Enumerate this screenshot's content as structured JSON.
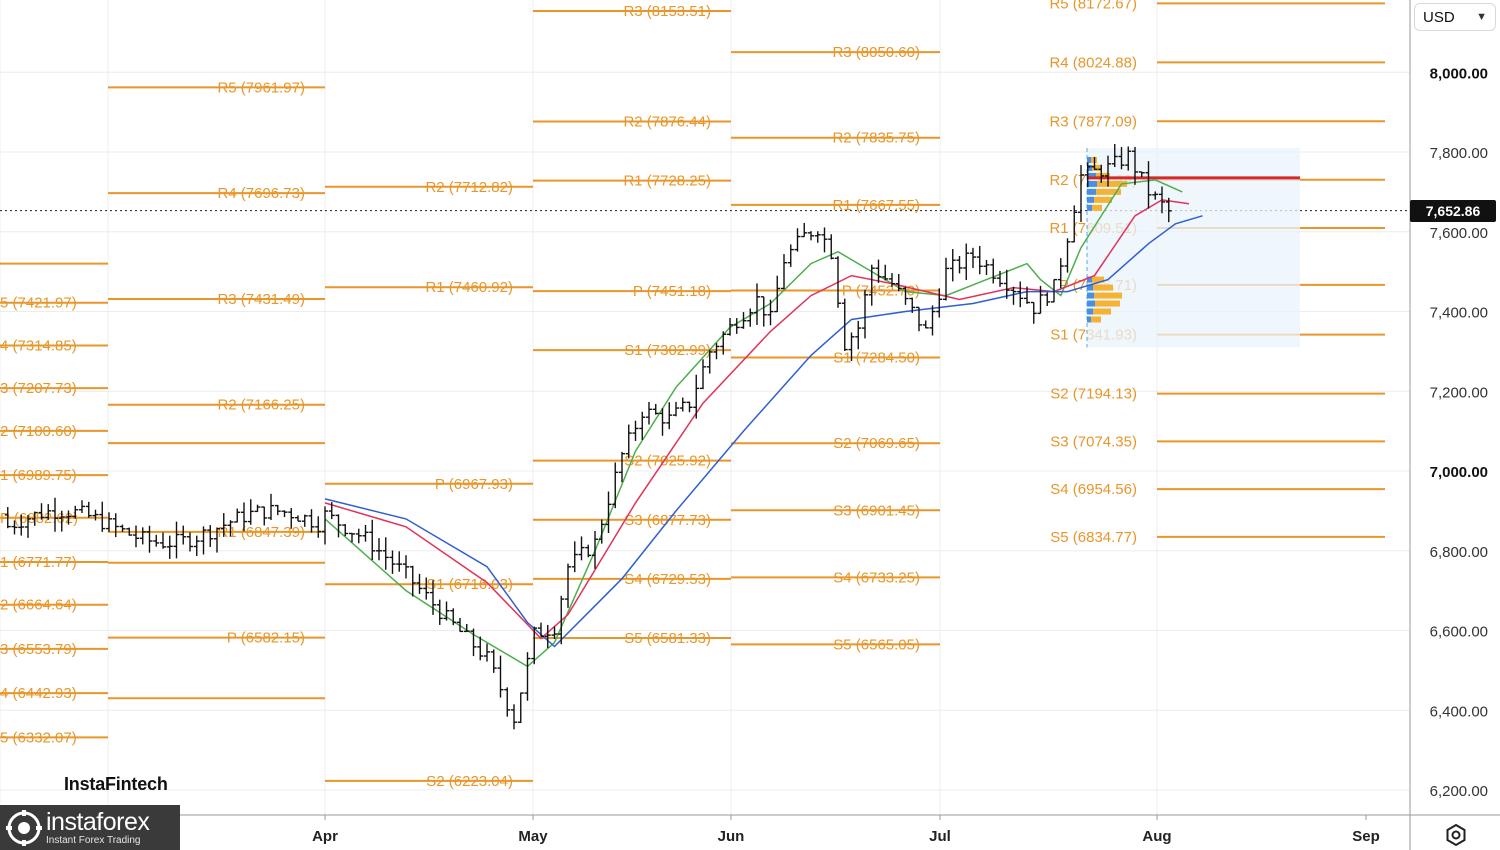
{
  "toolbar": {
    "currency": "USD"
  },
  "last_price_label": "7,652.86",
  "watermark": {
    "brand": "InstaFintech",
    "logo_name": "instaforex",
    "logo_tag": "Instant Forex Trading"
  },
  "colors": {
    "level": "#e8962a",
    "ma_fast": "#4fae4c",
    "ma_mid": "#e0335a",
    "ma_slow": "#2f5fd0",
    "profile_blue": "#4a90e2",
    "profile_orange": "#f5b335",
    "poc": "#d62828",
    "box": "#eaf3fb"
  },
  "chart_data": {
    "type": "ohlc",
    "y_axis": {
      "min": 6100,
      "max": 8250,
      "ticks": [
        "6,200.00",
        "6,400.00",
        "6,600.00",
        "6,800.00",
        "7,000.00",
        "7,200.00",
        "7,400.00",
        "7,600.00",
        "7,800.00",
        "8,000.00"
      ],
      "tick_values": [
        6200,
        6400,
        6600,
        6800,
        7000,
        7200,
        7400,
        7600,
        7800,
        8000
      ],
      "bold_ticks": [
        7000,
        8000
      ]
    },
    "x_axis": {
      "labels": [
        "Apr",
        "May",
        "Jun",
        "Jul",
        "Aug",
        "Sep"
      ]
    },
    "last_price": 7652.86,
    "pivot_periods": [
      {
        "period": "Mar",
        "levels": [
          {
            "label": "5 (7421.97)",
            "value": 7421.97
          },
          {
            "label": "4 (7314.85)",
            "value": 7314.85
          },
          {
            "label": "3 (7207.73)",
            "value": 7207.73
          },
          {
            "label": "2 (7100.60)",
            "value": 7100.6
          },
          {
            "label": "1 (6989.75)",
            "value": 6989.75
          },
          {
            "label": "P (6882.62)",
            "value": 6882.62
          },
          {
            "label": "1 (6771.77)",
            "value": 6771.77
          },
          {
            "label": "2 (6664.64)",
            "value": 6664.64
          },
          {
            "label": "3 (6553.79)",
            "value": 6553.79
          },
          {
            "label": "4 (6442.93)",
            "value": 6442.93
          },
          {
            "label": "5 (6332.07)",
            "value": 6332.07
          },
          {
            "label": "",
            "value": 7520
          }
        ]
      },
      {
        "period": "Apr",
        "levels": [
          {
            "label": "R5 (7961.97)",
            "value": 7961.97
          },
          {
            "label": "R4 (7696.73)",
            "value": 7696.73
          },
          {
            "label": "R3 (7431.49)",
            "value": 7431.49
          },
          {
            "label": "R2 (7166.25)",
            "value": 7166.25
          },
          {
            "label": "R1 (6847.39)",
            "value": 6847.39
          },
          {
            "label": "P (6582.15)",
            "value": 6582.15
          },
          {
            "label": "",
            "value": 7070
          },
          {
            "label": "",
            "value": 6770
          },
          {
            "label": "",
            "value": 6430
          }
        ]
      },
      {
        "period": "May",
        "levels": [
          {
            "label": "R2 (7712.82)",
            "value": 7712.82
          },
          {
            "label": "R1 (7460.92)",
            "value": 7460.92
          },
          {
            "label": "P (6967.93)",
            "value": 6967.93
          },
          {
            "label": "S1 (6716.03)",
            "value": 6716.03
          },
          {
            "label": "S2 (6223.04)",
            "value": 6223.04
          },
          {
            "label": "",
            "value": 8205
          }
        ]
      },
      {
        "period": "Jun",
        "levels": [
          {
            "label": "R3 (8153.51)",
            "value": 8153.51
          },
          {
            "label": "R2 (7876.44)",
            "value": 7876.44
          },
          {
            "label": "R1 (7728.25)",
            "value": 7728.25
          },
          {
            "label": "P (7451.18)",
            "value": 7451.18
          },
          {
            "label": "S1 (7302.99)",
            "value": 7302.99
          },
          {
            "label": "S2 (7025.92)",
            "value": 7025.92
          },
          {
            "label": "S3 (6877.73)",
            "value": 6877.73
          },
          {
            "label": "S4 (6729.53)",
            "value": 6729.53
          },
          {
            "label": "S5 (6581.33)",
            "value": 6581.33
          }
        ]
      },
      {
        "period": "Jul",
        "levels": [
          {
            "label": "R3 (8050.60)",
            "value": 8050.6
          },
          {
            "label": "R2 (7835.75)",
            "value": 7835.75
          },
          {
            "label": "R1 (7667.55)",
            "value": 7667.55
          },
          {
            "label": "P (7452.70)",
            "value": 7452.7
          },
          {
            "label": "S1 (7284.50)",
            "value": 7284.5
          },
          {
            "label": "S2 (7069.65)",
            "value": 7069.65
          },
          {
            "label": "S3 (6901.45)",
            "value": 6901.45
          },
          {
            "label": "S4 (6733.25)",
            "value": 6733.25
          },
          {
            "label": "S5 (6565.05)",
            "value": 6565.05
          }
        ]
      },
      {
        "period": "Aug",
        "levels": [
          {
            "label": "R5 (8172.67)",
            "value": 8172.67
          },
          {
            "label": "R4 (8024.88)",
            "value": 8024.88
          },
          {
            "label": "R3 (7877.09)",
            "value": 7877.09
          },
          {
            "label": "R2 (7730.29)",
            "value": 7730.29
          },
          {
            "label": "R1 (7609.51)",
            "value": 7609.51
          },
          {
            "label": "P (7466.71)",
            "value": 7466.71
          },
          {
            "label": "S1 (7341.93)",
            "value": 7341.93
          },
          {
            "label": "S2 (7194.13)",
            "value": 7194.13
          },
          {
            "label": "S3 (7074.35)",
            "value": 7074.35
          },
          {
            "label": "S4 (6954.56)",
            "value": 6954.56
          },
          {
            "label": "S5 (6834.77)",
            "value": 6834.77
          }
        ]
      }
    ],
    "ohlc_anchors": [
      {
        "d": 0,
        "v": 6890
      },
      {
        "d": 6,
        "v": 6830
      },
      {
        "d": 12,
        "v": 6740
      },
      {
        "d": 18,
        "v": 6630
      },
      {
        "d": 24,
        "v": 6530
      },
      {
        "d": 28,
        "v": 6380
      },
      {
        "d": 31,
        "v": 6590
      },
      {
        "d": 34,
        "v": 6610
      },
      {
        "d": 36,
        "v": 6760
      },
      {
        "d": 40,
        "v": 6820
      },
      {
        "d": 44,
        "v": 7040
      },
      {
        "d": 47,
        "v": 7150
      },
      {
        "d": 51,
        "v": 7130
      },
      {
        "d": 54,
        "v": 7170
      },
      {
        "d": 57,
        "v": 7300
      },
      {
        "d": 61,
        "v": 7380
      },
      {
        "d": 64,
        "v": 7430
      },
      {
        "d": 66,
        "v": 7380
      },
      {
        "d": 68,
        "v": 7530
      },
      {
        "d": 71,
        "v": 7590
      },
      {
        "d": 73,
        "v": 7610
      },
      {
        "d": 75,
        "v": 7550
      },
      {
        "d": 77,
        "v": 7320
      },
      {
        "d": 79,
        "v": 7360
      },
      {
        "d": 81,
        "v": 7510
      },
      {
        "d": 84,
        "v": 7470
      },
      {
        "d": 87,
        "v": 7400
      },
      {
        "d": 89,
        "v": 7350
      },
      {
        "d": 92,
        "v": 7500
      },
      {
        "d": 96,
        "v": 7540
      },
      {
        "d": 99,
        "v": 7500
      },
      {
        "d": 102,
        "v": 7460
      },
      {
        "d": 105,
        "v": 7410
      },
      {
        "d": 108,
        "v": 7460
      },
      {
        "d": 110,
        "v": 7590
      },
      {
        "d": 112,
        "v": 7740
      },
      {
        "d": 116,
        "v": 7760
      },
      {
        "d": 119,
        "v": 7790
      },
      {
        "d": 122,
        "v": 7700
      },
      {
        "d": 125,
        "v": 7650
      }
    ],
    "moving_averages": [
      {
        "color": "ma_fast",
        "points": [
          [
            0,
            6880
          ],
          [
            12,
            6700
          ],
          [
            22,
            6590
          ],
          [
            30,
            6510
          ],
          [
            34,
            6570
          ],
          [
            40,
            6800
          ],
          [
            46,
            7050
          ],
          [
            52,
            7210
          ],
          [
            60,
            7360
          ],
          [
            66,
            7420
          ],
          [
            72,
            7520
          ],
          [
            76,
            7550
          ],
          [
            80,
            7510
          ],
          [
            86,
            7450
          ],
          [
            92,
            7440
          ],
          [
            98,
            7480
          ],
          [
            104,
            7520
          ],
          [
            106,
            7480
          ],
          [
            109,
            7440
          ],
          [
            112,
            7560
          ],
          [
            118,
            7720
          ],
          [
            123,
            7730
          ],
          [
            127,
            7700
          ]
        ]
      },
      {
        "color": "ma_mid",
        "points": [
          [
            0,
            6920
          ],
          [
            12,
            6860
          ],
          [
            24,
            6720
          ],
          [
            32,
            6580
          ],
          [
            36,
            6640
          ],
          [
            46,
            6920
          ],
          [
            56,
            7170
          ],
          [
            66,
            7350
          ],
          [
            72,
            7440
          ],
          [
            78,
            7490
          ],
          [
            84,
            7470
          ],
          [
            94,
            7430
          ],
          [
            102,
            7460
          ],
          [
            108,
            7450
          ],
          [
            114,
            7490
          ],
          [
            120,
            7640
          ],
          [
            124,
            7680
          ],
          [
            128,
            7670
          ]
        ]
      },
      {
        "color": "ma_slow",
        "points": [
          [
            0,
            6930
          ],
          [
            12,
            6880
          ],
          [
            24,
            6760
          ],
          [
            30,
            6620
          ],
          [
            34,
            6560
          ],
          [
            44,
            6730
          ],
          [
            52,
            6900
          ],
          [
            62,
            7100
          ],
          [
            72,
            7290
          ],
          [
            78,
            7380
          ],
          [
            86,
            7400
          ],
          [
            96,
            7420
          ],
          [
            104,
            7450
          ],
          [
            110,
            7450
          ],
          [
            116,
            7480
          ],
          [
            122,
            7570
          ],
          [
            126,
            7620
          ],
          [
            130,
            7640
          ]
        ]
      }
    ],
    "volume_profile": {
      "from_price": 7380,
      "to_price": 7780,
      "buckets": [
        {
          "price": 7780,
          "blue": 4,
          "orange": 6
        },
        {
          "price": 7760,
          "blue": 5,
          "orange": 9
        },
        {
          "price": 7740,
          "blue": 9,
          "orange": 14
        },
        {
          "price": 7720,
          "blue": 10,
          "orange": 30
        },
        {
          "price": 7700,
          "blue": 9,
          "orange": 25
        },
        {
          "price": 7680,
          "blue": 7,
          "orange": 18
        },
        {
          "price": 7660,
          "blue": 5,
          "orange": 10
        },
        {
          "price": 7480,
          "blue": 5,
          "orange": 12
        },
        {
          "price": 7460,
          "blue": 6,
          "orange": 20
        },
        {
          "price": 7440,
          "blue": 7,
          "orange": 28
        },
        {
          "price": 7420,
          "blue": 8,
          "orange": 25
        },
        {
          "price": 7400,
          "blue": 6,
          "orange": 18
        },
        {
          "price": 7380,
          "blue": 4,
          "orange": 10
        }
      ],
      "poc": 7735
    }
  }
}
